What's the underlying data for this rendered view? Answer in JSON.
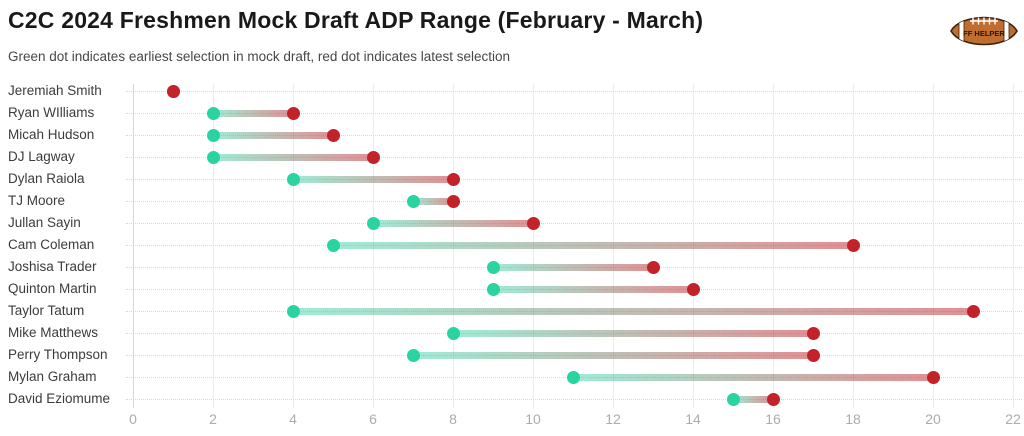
{
  "header": {
    "title": "C2C 2024 Freshmen Mock Draft ADP Range (February - March)",
    "subtitle": "Green dot indicates earliest selection in mock draft, red dot indicates latest selection",
    "logo_text": "FF HELPER"
  },
  "colors": {
    "earliest_dot": "#2bd3a0",
    "latest_dot": "#c2222a",
    "line_gradient_start": "rgba(43,211,160,0.45)",
    "line_gradient_end": "rgba(194,34,42,0.5)",
    "title_text": "#191919",
    "subtitle_text": "#474747",
    "player_label_text": "#3c3c3c",
    "tick_text": "#acacac",
    "football_brown": "#c06d30",
    "football_outline": "#3a2410"
  },
  "chart_data": {
    "type": "dumbbell",
    "title": "C2C 2024 Freshmen Mock Draft ADP Range (February - March)",
    "subtitle": "Green dot indicates earliest selection in mock draft, red dot indicates latest selection",
    "xlabel": "",
    "ylabel": "",
    "xlim": [
      0,
      22
    ],
    "xticks": [
      0,
      2,
      4,
      6,
      8,
      10,
      12,
      14,
      16,
      18,
      20,
      22
    ],
    "grid": "vertical solid gridlines at each tick, horizontal dotted line per row",
    "legend": "none (explained in subtitle)",
    "categories": [
      "Jeremiah Smith",
      "Ryan WIlliams",
      "Micah Hudson",
      "DJ Lagway",
      "Dylan Raiola",
      "TJ Moore",
      "Jullan Sayin",
      "Cam Coleman",
      "Joshisa Trader",
      "Quinton Martin",
      "Taylor Tatum",
      "Mike Matthews",
      "Perry Thompson",
      "Mylan Graham",
      "David Eziomume"
    ],
    "series": [
      {
        "name": "Earliest selection (green dot)",
        "color": "#2bd3a0",
        "values": [
          1,
          2,
          2,
          2,
          4,
          7,
          6,
          5,
          9,
          9,
          4,
          8,
          7,
          11,
          15
        ]
      },
      {
        "name": "Latest selection (red dot)",
        "color": "#c2222a",
        "values": [
          1,
          4,
          5,
          6,
          8,
          8,
          10,
          18,
          13,
          14,
          21,
          17,
          17,
          20,
          16
        ]
      }
    ]
  }
}
